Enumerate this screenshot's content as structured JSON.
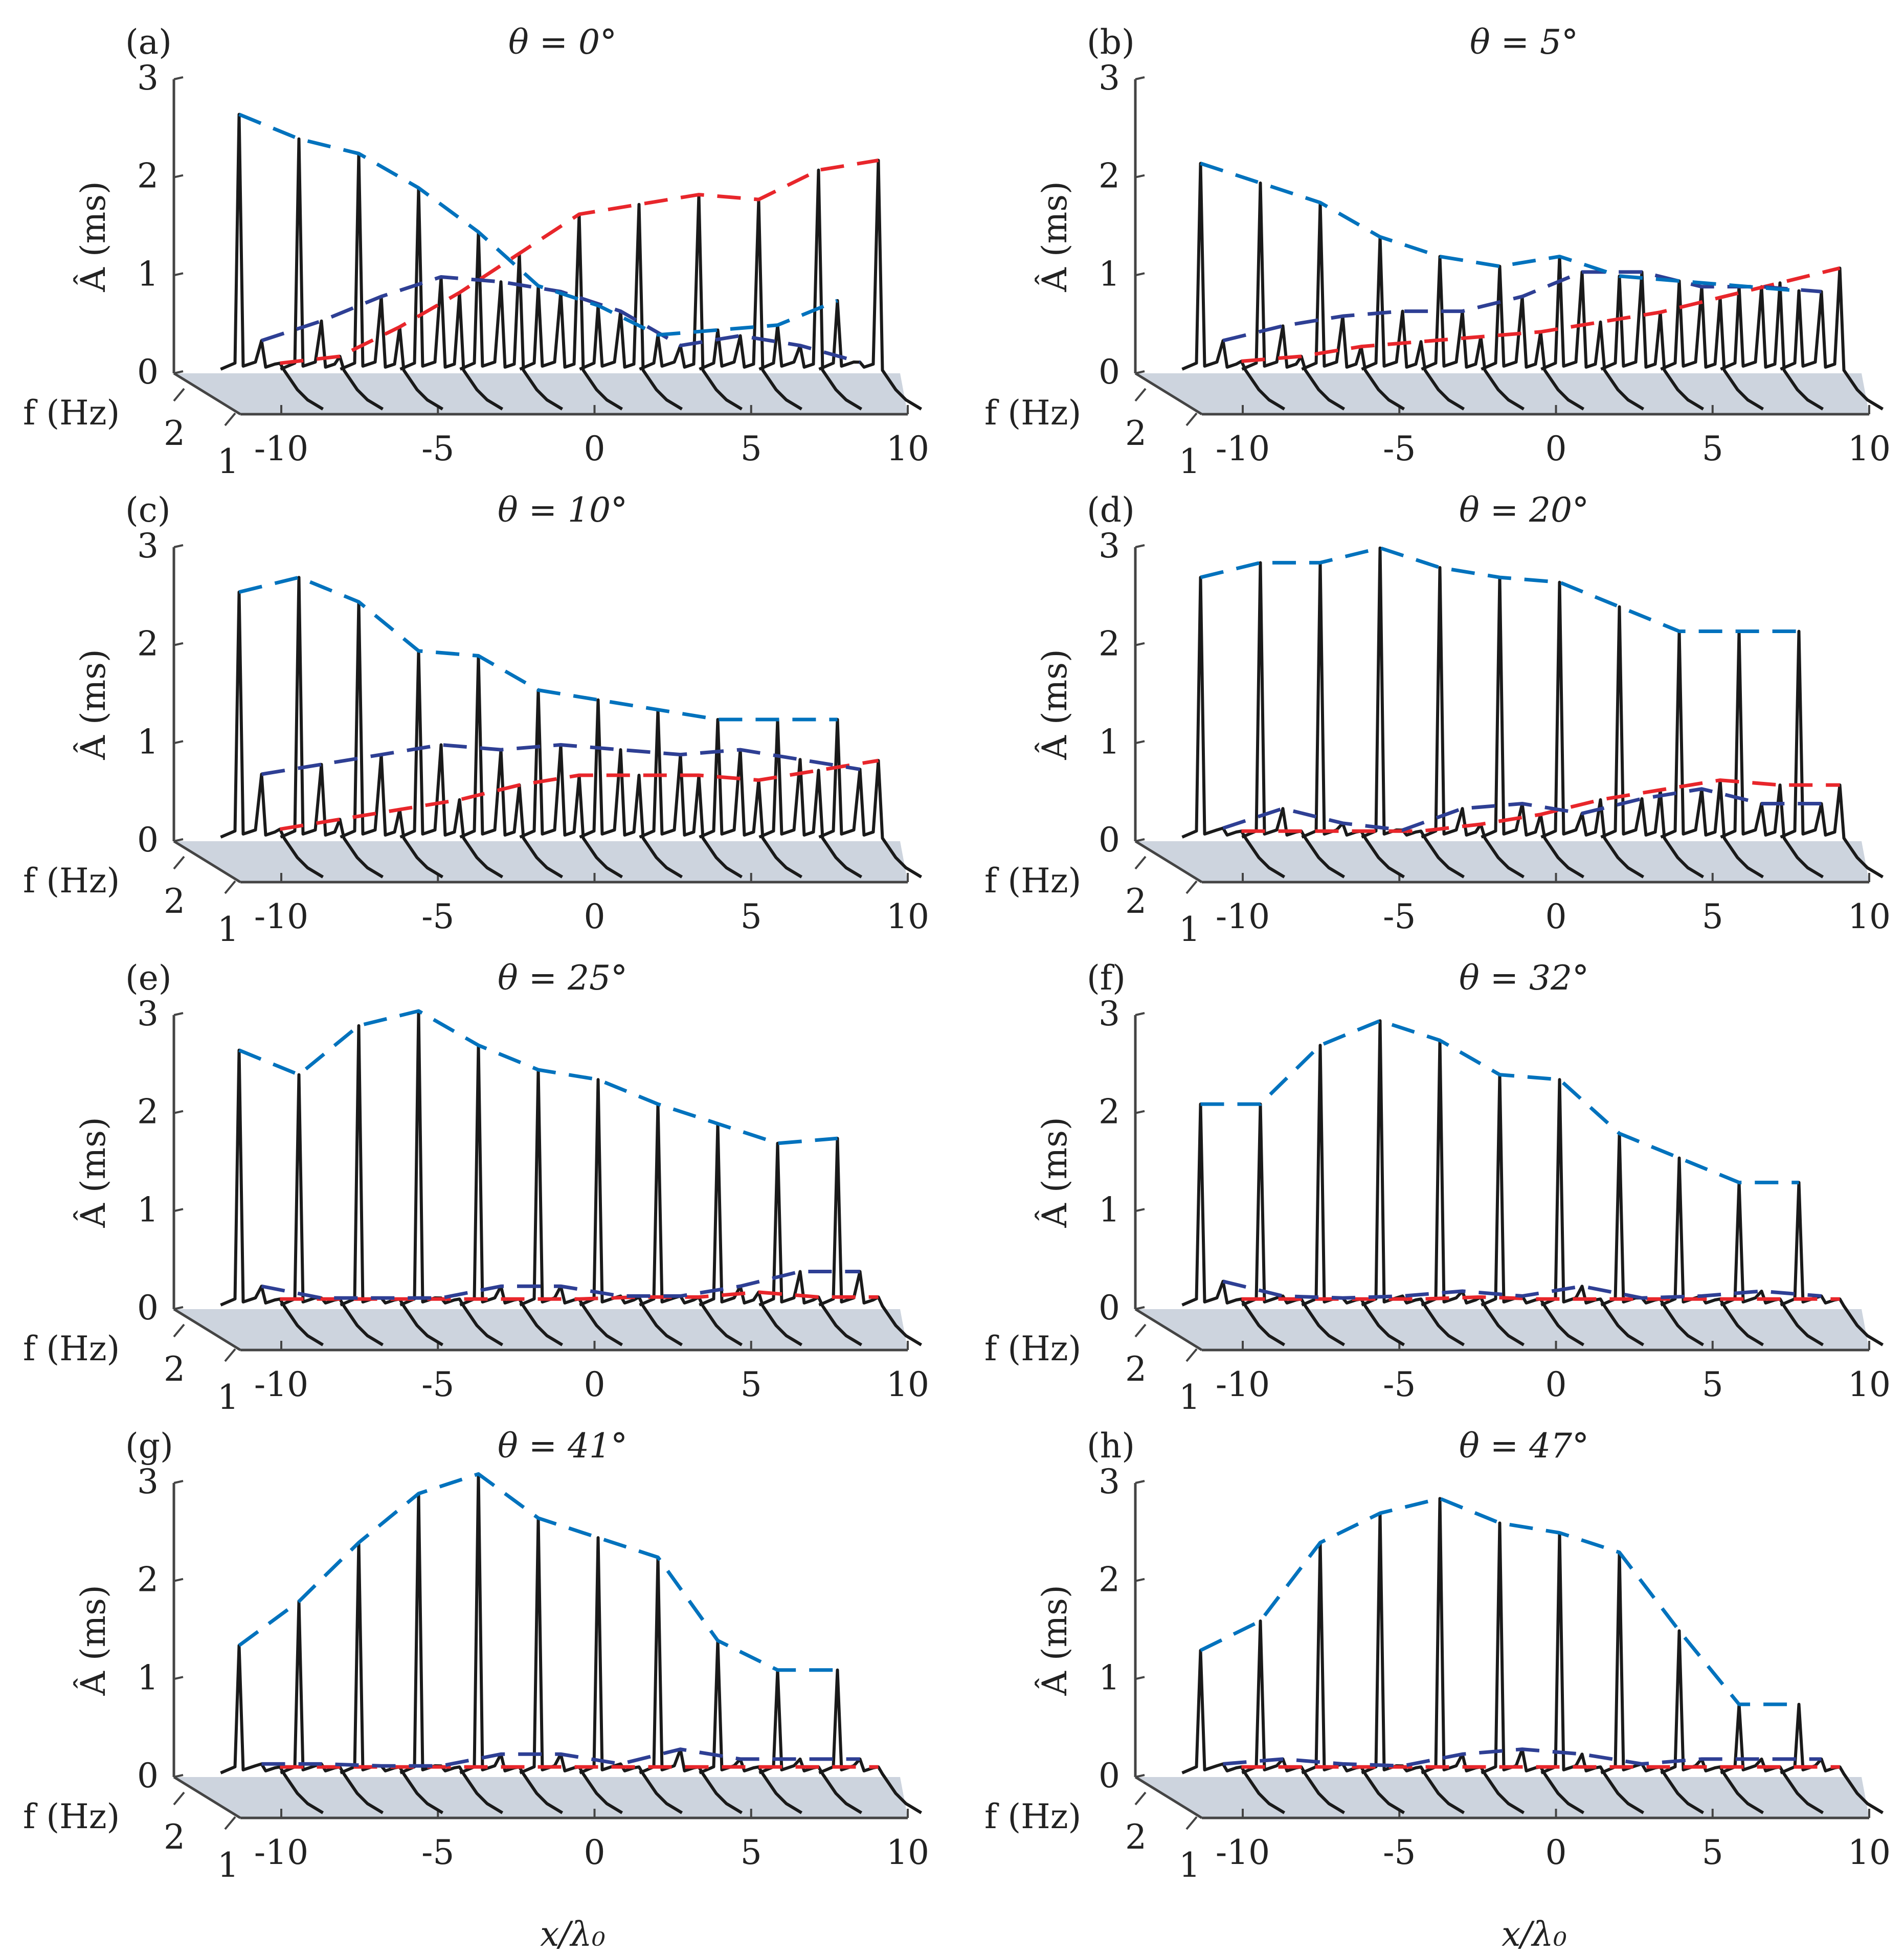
{
  "chart_data": {
    "type": "waterfall-3d",
    "colors": {
      "first": "#0072bd",
      "second": "#2e3f94",
      "third": "#e8262b",
      "spectra": "#1a1a1a",
      "floor": "#cdd4de"
    },
    "axes": {
      "ylabel": "Â (ms)",
      "zlabel": "f (Hz)",
      "xlabel": "x/λ₀",
      "xticks": [
        "-10",
        "-5",
        "0",
        "5",
        "10"
      ],
      "xtick_values": [
        -10,
        -5,
        0,
        5,
        10
      ],
      "yticks": [
        "0",
        "1",
        "2",
        "3"
      ],
      "ytick_values": [
        0,
        1,
        2,
        3
      ],
      "zticks": [
        "1",
        "2"
      ],
      "xlim": [
        -10,
        10
      ],
      "ylim": [
        0,
        3
      ],
      "zlim": [
        1,
        2
      ]
    },
    "stations": [
      -11,
      -9,
      -7,
      -5,
      -3,
      -1,
      1,
      3,
      5,
      7,
      9
    ],
    "panels": [
      {
        "label": "(a)",
        "title": "θ = 0°",
        "first": [
          2.6,
          2.35,
          2.2,
          1.85,
          1.4,
          0.85,
          0.65,
          0.35,
          0.4,
          0.45,
          0.7
        ],
        "second": [
          0.25,
          0.45,
          0.7,
          0.9,
          0.85,
          0.75,
          0.55,
          0.2,
          0.3,
          0.2,
          0
        ],
        "third": [
          -0.15,
          0.1,
          0.4,
          0.75,
          1.15,
          1.55,
          1.65,
          1.75,
          1.7,
          2.0,
          2.1
        ]
      },
      {
        "label": "(b)",
        "title": "θ = 5°",
        "first": [
          2.1,
          1.9,
          1.7,
          1.35,
          1.15,
          1.05,
          1.15,
          0.95,
          0.9,
          0.85,
          0.8
        ],
        "second": [
          0.25,
          0.4,
          0.5,
          0.55,
          0.55,
          0.7,
          0.95,
          0.95,
          0.8,
          0.8,
          0.75
        ],
        "third": [
          0.05,
          0.1,
          0.2,
          0.25,
          0.3,
          0.35,
          0.45,
          0.55,
          0.7,
          0.85,
          1.0
        ]
      },
      {
        "label": "(c)",
        "title": "θ = 10°",
        "first": [
          2.5,
          2.65,
          2.4,
          1.9,
          1.85,
          1.5,
          1.4,
          1.3,
          1.2,
          1.2,
          1.2
        ],
        "second": [
          0.6,
          0.7,
          0.8,
          0.9,
          0.85,
          0.9,
          0.85,
          0.8,
          0.85,
          0.75,
          0.65
        ],
        "third": [
          0.05,
          0.15,
          0.25,
          0.35,
          0.5,
          0.6,
          0.6,
          0.6,
          0.55,
          0.65,
          0.75
        ]
      },
      {
        "label": "(d)",
        "title": "θ = 20°",
        "first": [
          2.65,
          2.8,
          2.8,
          2.95,
          2.75,
          2.65,
          2.6,
          2.35,
          2.1,
          2.1,
          2.1
        ],
        "second": [
          0.05,
          0.25,
          0.1,
          -0.1,
          0.25,
          0.3,
          0.2,
          0.35,
          0.45,
          0.3,
          0.3
        ],
        "third": [
          -0.2,
          0.0,
          -0.05,
          -0.1,
          0.1,
          0.2,
          0.35,
          0.45,
          0.55,
          0.5,
          0.5
        ]
      },
      {
        "label": "(e)",
        "title": "θ = 25°",
        "first": [
          2.6,
          2.35,
          2.85,
          3.0,
          2.65,
          2.4,
          2.3,
          2.05,
          1.85,
          1.65,
          1.7
        ],
        "second": [
          0.15,
          -0.05,
          0.0,
          -0.05,
          0.15,
          0.15,
          0.05,
          0.05,
          0.15,
          0.3,
          0.3
        ],
        "third": [
          -0.2,
          -0.05,
          -0.05,
          -0.15,
          -0.05,
          0.0,
          0.05,
          0.05,
          0.1,
          0.05,
          0.05
        ]
      },
      {
        "label": "(f)",
        "title": "θ = 32°",
        "first": [
          2.05,
          2.05,
          2.65,
          2.9,
          2.7,
          2.35,
          2.3,
          1.75,
          1.5,
          1.25,
          1.25
        ],
        "second": [
          0.2,
          0.05,
          0.0,
          0.05,
          0.1,
          0.05,
          0.15,
          -0.05,
          0.05,
          0.1,
          0.05
        ],
        "third": [
          -0.2,
          -0.1,
          -0.2,
          0.0,
          0.05,
          0.0,
          -0.05,
          -0.15,
          -0.2,
          -0.05,
          0.0
        ]
      },
      {
        "label": "(g)",
        "title": "θ = 41°",
        "first": [
          1.3,
          1.75,
          2.35,
          2.85,
          3.05,
          2.6,
          2.4,
          2.2,
          1.35,
          1.05,
          1.05
        ],
        "second": [
          0.05,
          0.05,
          0.0,
          -0.05,
          0.15,
          0.15,
          0.05,
          0.2,
          0.1,
          0.1,
          0.1
        ],
        "third": [
          -0.05,
          -0.1,
          -0.1,
          -0.15,
          -0.05,
          -0.05,
          -0.1,
          -0.1,
          -0.05,
          -0.05,
          -0.05
        ]
      },
      {
        "label": "(h)",
        "title": "θ = 47°",
        "first": [
          1.25,
          1.55,
          2.35,
          2.65,
          2.8,
          2.55,
          2.45,
          2.25,
          1.45,
          0.7,
          0.7
        ],
        "second": [
          0.05,
          0.1,
          0.05,
          0.0,
          0.15,
          0.2,
          0.15,
          0.05,
          0.1,
          0.1,
          0.1
        ],
        "third": [
          -0.05,
          -0.05,
          -0.1,
          -0.05,
          -0.05,
          -0.05,
          -0.05,
          0.0,
          0.0,
          0.0,
          0.0
        ]
      }
    ]
  }
}
